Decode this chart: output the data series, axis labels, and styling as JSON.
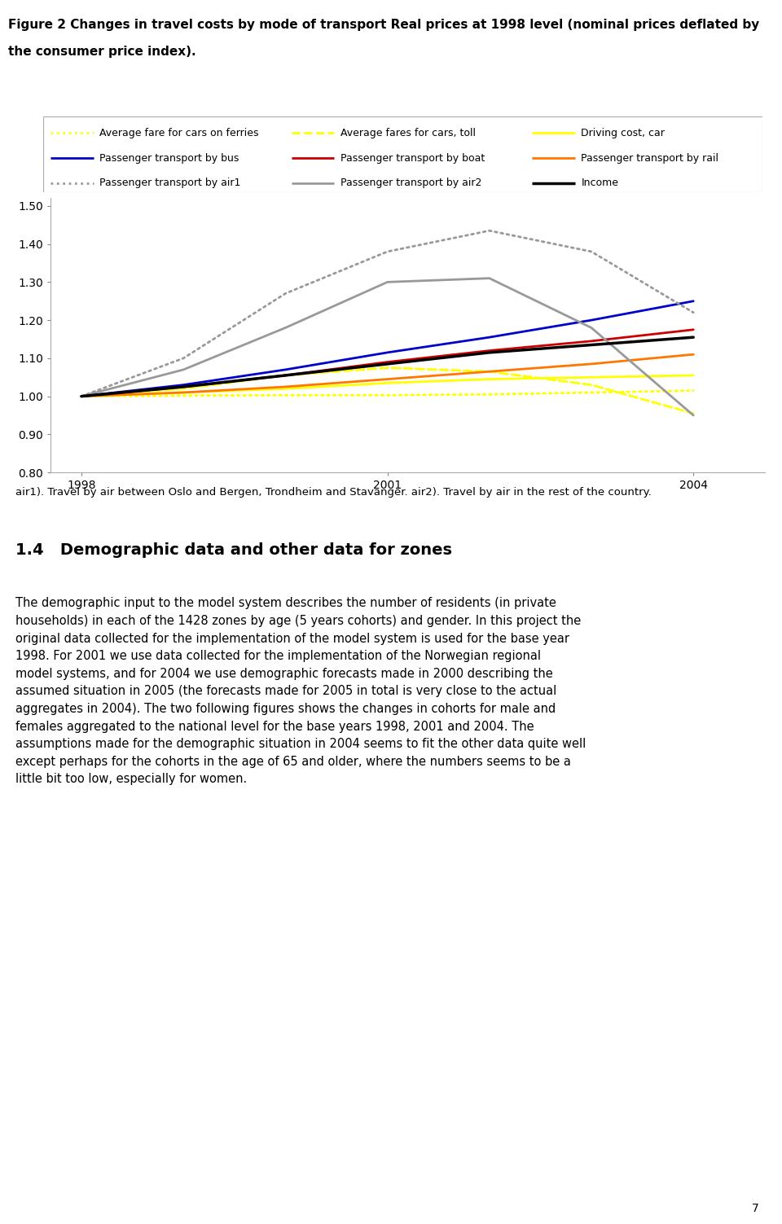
{
  "title_line1": "Figure 2 Changes in travel costs by mode of transport Real prices at 1998 level (nominal prices deflated by",
  "title_line2": "the consumer price index).",
  "x_years": [
    1998,
    1999,
    2000,
    2001,
    2002,
    2003,
    2004
  ],
  "xlim": [
    1997.7,
    2004.7
  ],
  "ylim": [
    0.8,
    1.52
  ],
  "yticks": [
    0.8,
    0.9,
    1.0,
    1.1,
    1.2,
    1.3,
    1.4,
    1.5
  ],
  "xticks": [
    1998,
    2001,
    2004
  ],
  "footnote": "air1). Travel by air between Oslo and Bergen, Trondheim and Stavanger. air2). Travel by air in the rest of the country.",
  "series": [
    {
      "key": "avg_fare_ferries",
      "label": "Average fare for cars on ferries",
      "color": "#ffff00",
      "linestyle": "dotted",
      "linewidth": 2.0,
      "values": [
        1.0,
        1.002,
        1.003,
        1.003,
        1.005,
        1.01,
        1.015
      ]
    },
    {
      "key": "avg_fares_toll",
      "label": "Average fares for cars, toll",
      "color": "#ffff00",
      "linestyle": "dashed",
      "linewidth": 2.0,
      "values": [
        1.0,
        1.02,
        1.055,
        1.075,
        1.065,
        1.03,
        0.955
      ]
    },
    {
      "key": "driving_cost",
      "label": "Driving cost, car",
      "color": "#ffff00",
      "linestyle": "solid",
      "linewidth": 2.0,
      "values": [
        1.0,
        1.01,
        1.02,
        1.035,
        1.045,
        1.05,
        1.055
      ]
    },
    {
      "key": "transport_bus",
      "label": "Passenger transport by bus",
      "color": "#0000cc",
      "linestyle": "solid",
      "linewidth": 2.0,
      "values": [
        1.0,
        1.03,
        1.07,
        1.115,
        1.155,
        1.2,
        1.25
      ]
    },
    {
      "key": "transport_boat",
      "label": "Passenger transport by boat",
      "color": "#cc0000",
      "linestyle": "solid",
      "linewidth": 2.0,
      "values": [
        1.0,
        1.025,
        1.055,
        1.09,
        1.12,
        1.145,
        1.175
      ]
    },
    {
      "key": "transport_rail",
      "label": "Passenger transport by rail",
      "color": "#ff7700",
      "linestyle": "solid",
      "linewidth": 2.0,
      "values": [
        1.0,
        1.01,
        1.025,
        1.045,
        1.065,
        1.085,
        1.11
      ]
    },
    {
      "key": "transport_air1",
      "label": "Passenger transport by air1",
      "color": "#999999",
      "linestyle": "dotted",
      "linewidth": 2.0,
      "values": [
        1.0,
        1.1,
        1.27,
        1.38,
        1.435,
        1.38,
        1.22
      ]
    },
    {
      "key": "transport_air2",
      "label": "Passenger transport by air2",
      "color": "#999999",
      "linestyle": "solid",
      "linewidth": 2.0,
      "values": [
        1.0,
        1.07,
        1.18,
        1.3,
        1.31,
        1.18,
        0.95
      ]
    },
    {
      "key": "income",
      "label": "Income",
      "color": "#000000",
      "linestyle": "solid",
      "linewidth": 2.5,
      "values": [
        1.0,
        1.025,
        1.055,
        1.085,
        1.115,
        1.135,
        1.155
      ]
    }
  ],
  "legend_entries": [
    {
      "label": "Average fare for cars on ferries",
      "color": "#ffff00",
      "linestyle": "dotted",
      "linewidth": 2.0
    },
    {
      "label": "Average fares for cars, toll",
      "color": "#ffff00",
      "linestyle": "dashed",
      "linewidth": 2.0
    },
    {
      "label": "Driving cost, car",
      "color": "#ffff00",
      "linestyle": "solid",
      "linewidth": 2.0
    },
    {
      "label": "Passenger transport by bus",
      "color": "#0000cc",
      "linestyle": "solid",
      "linewidth": 2.0
    },
    {
      "label": "Passenger transport by boat",
      "color": "#cc0000",
      "linestyle": "solid",
      "linewidth": 2.0
    },
    {
      "label": "Passenger transport by rail",
      "color": "#ff7700",
      "linestyle": "solid",
      "linewidth": 2.0
    },
    {
      "label": "Passenger transport by air1",
      "color": "#999999",
      "linestyle": "dotted",
      "linewidth": 2.0
    },
    {
      "label": "Passenger transport by air2",
      "color": "#999999",
      "linestyle": "solid",
      "linewidth": 2.0
    },
    {
      "label": "Income",
      "color": "#000000",
      "linestyle": "solid",
      "linewidth": 2.5
    }
  ],
  "section_heading": "1.4   Demographic data and other data for zones",
  "body_text": "The demographic input to the model system describes the number of residents (in private\nhouseholds) in each of the 1428 zones by age (5 years cohorts) and gender. In this project the\noriginal data collected for the implementation of the model system is used for the base year\n1998. For 2001 we use data collected for the implementation of the Norwegian regional\nmodel systems, and for 2004 we use demographic forecasts made in 2000 describing the\nassumed situation in 2005 (the forecasts made for 2005 in total is very close to the actual\naggregates in 2004). The two following figures shows the changes in cohorts for male and\nfemales aggregated to the national level for the base years 1998, 2001 and 2004. The\nassumptions made for the demographic situation in 2004 seems to fit the other data quite well\nexcept perhaps for the cohorts in the age of 65 and older, where the numbers seems to be a\nlittle bit too low, especially for women.",
  "page_number": "7"
}
